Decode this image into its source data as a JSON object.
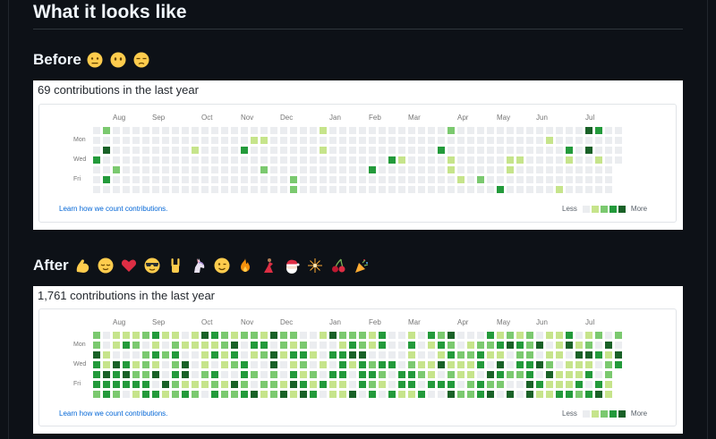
{
  "heading": "What it looks like",
  "before": {
    "label": "Before",
    "emojis": [
      "neutral-face-emoji",
      "face-without-mouth-emoji",
      "unamused-face-emoji"
    ],
    "title": "69 contributions in the last year"
  },
  "after": {
    "label": "After",
    "emojis": [
      "flexed-biceps-emoji",
      "relieved-face-emoji",
      "red-heart-emoji",
      "sunglasses-face-emoji",
      "sign-of-horns-emoji",
      "unicorn-emoji",
      "winking-face-emoji",
      "fire-emoji",
      "dancer-emoji",
      "santa-emoji",
      "sparkler-emoji",
      "cherries-emoji",
      "party-popper-emoji"
    ],
    "title": "1,761 contributions in the last year"
  },
  "graph": {
    "months": [
      "Aug",
      "Sep",
      "Oct",
      "Nov",
      "Dec",
      "Jan",
      "Feb",
      "Mar",
      "Apr",
      "May",
      "Jun",
      "Jul"
    ],
    "days": [
      "Mon",
      "Wed",
      "Fri"
    ],
    "learn_link": "Learn how we count contributions.",
    "legend_less": "Less",
    "legend_more": "More"
  },
  "colors": {
    "level0": "#ebedf0",
    "level1": "#c6e48b",
    "level2": "#7bc96f",
    "level3": "#239a3b",
    "level4": "#196127"
  }
}
